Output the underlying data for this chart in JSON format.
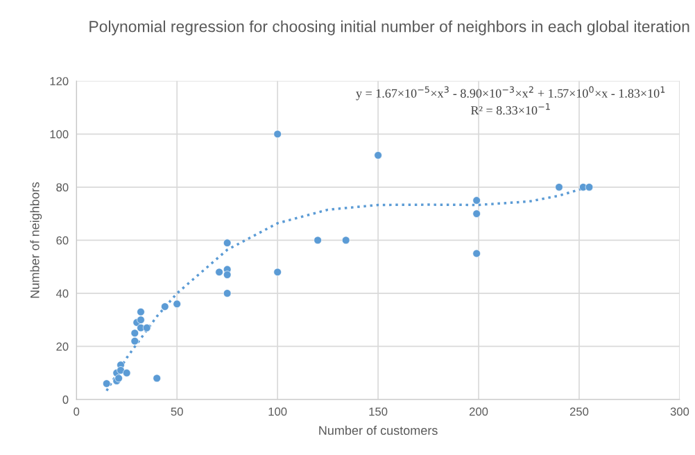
{
  "chart_data": {
    "type": "scatter",
    "title": "Polynomial regression for choosing initial number of neighbors in each global iteration",
    "xlabel": "Number of customers",
    "ylabel": "Number of neighbors",
    "xlim": [
      0,
      300
    ],
    "xticks": [
      0,
      50,
      100,
      150,
      200,
      250,
      300
    ],
    "ylim": [
      0,
      120
    ],
    "yticks": [
      0,
      20,
      40,
      60,
      80,
      100,
      120
    ],
    "grid": true,
    "legend": false,
    "annotations": [
      "y = 1.67×10$^{−5}$×x$^{3}$ - 8.90×10$^{−3}$×x$^{2}$ + 1.57×10$^{0}$×x - 1.83×10$^{1}$",
      "R² = 8.33×10$^{−1}$"
    ],
    "series": [
      {
        "color": "#5b9bd5",
        "marker": "circle",
        "x": [
          15,
          20,
          20,
          21,
          22,
          22,
          25,
          29,
          29,
          30,
          32,
          32,
          32,
          35,
          40,
          44,
          50,
          71,
          75,
          75,
          75,
          75,
          100,
          100,
          120,
          134,
          150,
          199,
          199,
          199,
          240,
          252,
          255
        ],
        "values": [
          6,
          10,
          7,
          8,
          13,
          11,
          10,
          22,
          25,
          29,
          33,
          30,
          27,
          27,
          8,
          35,
          36,
          48,
          49,
          47,
          59,
          40,
          100,
          48,
          60,
          60,
          92,
          75,
          70,
          55,
          80,
          80,
          80
        ]
      },
      {
        "type": "line",
        "color": "#5b9bd5",
        "marker": "none",
        "line_style": "dotted",
        "x": [
          15,
          25,
          40,
          50,
          75,
          100,
          125,
          150,
          175,
          200,
          225,
          240,
          255
        ],
        "values": [
          3.3,
          15.7,
          31.3,
          40.0,
          56.4,
          66.4,
          71.5,
          73.3,
          73.4,
          73.3,
          74.6,
          76.8,
          80.2
        ]
      }
    ]
  }
}
